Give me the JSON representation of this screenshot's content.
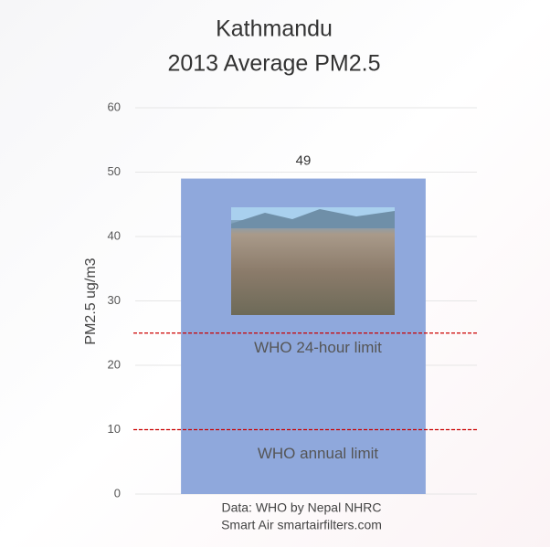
{
  "chart_data": {
    "type": "bar",
    "title": "Kathmandu",
    "subtitle": "2013 Average PM2.5",
    "y_label": "PM2.5 ug/m3",
    "categories": [
      null
    ],
    "values": [
      49
    ],
    "color": "#8fa8dc",
    "ylim": [
      0,
      60
    ],
    "yticks": [
      0,
      10,
      20,
      30,
      40,
      50,
      60
    ],
    "grid": true,
    "reference_lines": [
      {
        "value": 25,
        "label": "WHO 24-hour limit",
        "color": "#cc0000"
      },
      {
        "value": 10,
        "label": "WHO annual limit",
        "color": "#cc0000"
      }
    ],
    "source": [
      "Data: WHO by Nepal NHRC",
      "Smart Air smartairfilters.com"
    ]
  }
}
